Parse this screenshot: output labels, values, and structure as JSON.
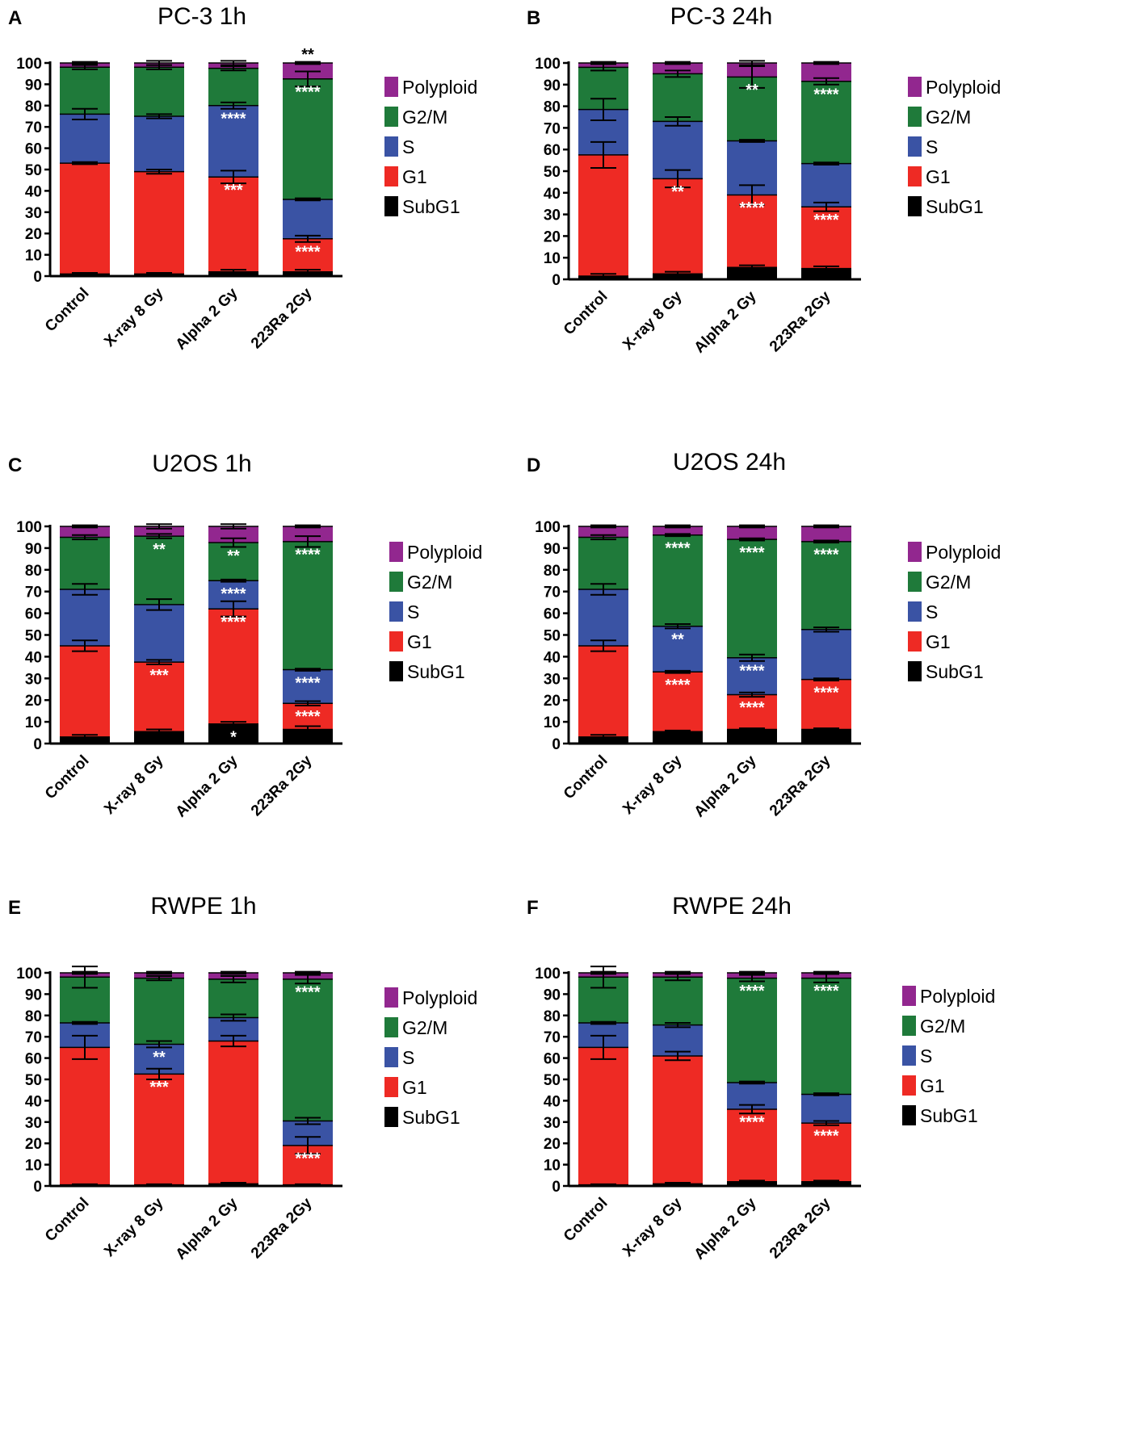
{
  "chart_data": [
    {
      "panel": "A",
      "title": "PC-3 1h",
      "type": "bar",
      "stacked": true,
      "ylim": [
        0,
        100
      ],
      "yticks": [
        0,
        10,
        20,
        30,
        40,
        50,
        60,
        70,
        80,
        90,
        100
      ],
      "categories": [
        "Control",
        "X-ray 8 Gy",
        "Alpha 2 Gy",
        "223Ra 2Gy"
      ],
      "series": [
        {
          "name": "SubG1",
          "color": "#000000",
          "values": [
            1,
            1,
            2,
            2
          ],
          "errors": [
            0.5,
            0.5,
            1,
            1
          ]
        },
        {
          "name": "G1",
          "color": "#ee2a24",
          "values": [
            52,
            48,
            44.5,
            15.5
          ],
          "errors": [
            0.5,
            1,
            3,
            1.5
          ]
        },
        {
          "name": "S",
          "color": "#3a53a4",
          "values": [
            23,
            26,
            33.5,
            18.5
          ],
          "errors": [
            2.5,
            1,
            1.5,
            0.5
          ]
        },
        {
          "name": "G2/M",
          "color": "#1f7a3a",
          "values": [
            22,
            23,
            17.5,
            56.5
          ],
          "errors": [
            1,
            1,
            1,
            3.5
          ]
        },
        {
          "name": "Polyploid",
          "color": "#92278f",
          "values": [
            2,
            2,
            2.5,
            7.5
          ],
          "errors": [
            0.5,
            1,
            1,
            0.5
          ]
        }
      ],
      "significance": [
        {
          "category": "Alpha 2 Gy",
          "series": "S",
          "label": "****",
          "color": "#ffffff"
        },
        {
          "category": "Alpha 2 Gy",
          "series": "G1",
          "label": "***",
          "color": "#ffffff"
        },
        {
          "category": "223Ra 2Gy",
          "series": "G2/M",
          "label": "****",
          "color": "#ffffff"
        },
        {
          "category": "223Ra 2Gy",
          "series": "G1",
          "label": "****",
          "color": "#ffffff"
        },
        {
          "category": "223Ra 2Gy",
          "series": "Polyploid",
          "label": "**",
          "color": "#000000",
          "above": true
        }
      ],
      "legend": [
        "Polyploid",
        "G2/M",
        "S",
        "G1",
        "SubG1"
      ]
    },
    {
      "panel": "B",
      "title": "PC-3 24h",
      "type": "bar",
      "stacked": true,
      "ylim": [
        0,
        100
      ],
      "yticks": [
        0,
        10,
        20,
        30,
        40,
        50,
        60,
        70,
        80,
        90,
        100
      ],
      "categories": [
        "Control",
        "X-ray 8 Gy",
        "Alpha 2 Gy",
        "223Ra 2Gy"
      ],
      "series": [
        {
          "name": "SubG1",
          "color": "#000000",
          "values": [
            1.5,
            2.5,
            5.5,
            5
          ],
          "errors": [
            1,
            1,
            1,
            1
          ]
        },
        {
          "name": "G1",
          "color": "#ee2a24",
          "values": [
            56,
            44,
            33.5,
            28.5
          ],
          "errors": [
            6,
            4,
            4.5,
            2
          ]
        },
        {
          "name": "S",
          "color": "#3a53a4",
          "values": [
            21,
            26.5,
            25,
            20
          ],
          "errors": [
            5,
            2,
            0.5,
            0.5
          ]
        },
        {
          "name": "G2/M",
          "color": "#1f7a3a",
          "values": [
            19.5,
            22,
            29.5,
            38
          ],
          "errors": [
            1.5,
            1.5,
            5,
            1.5
          ]
        },
        {
          "name": "Polyploid",
          "color": "#92278f",
          "values": [
            2,
            5,
            6.5,
            8.5
          ],
          "errors": [
            0.5,
            0.5,
            1,
            0.5
          ]
        }
      ],
      "significance": [
        {
          "category": "X-ray 8 Gy",
          "series": "G1",
          "label": "**",
          "color": "#ffffff"
        },
        {
          "category": "Alpha 2 Gy",
          "series": "G2/M",
          "label": "**",
          "color": "#ffffff"
        },
        {
          "category": "Alpha 2 Gy",
          "series": "G1",
          "label": "****",
          "color": "#ffffff"
        },
        {
          "category": "223Ra 2Gy",
          "series": "G2/M",
          "label": "****",
          "color": "#ffffff"
        },
        {
          "category": "223Ra 2Gy",
          "series": "G1",
          "label": "****",
          "color": "#ffffff"
        }
      ],
      "legend": [
        "Polyploid",
        "G2/M",
        "S",
        "G1",
        "SubG1"
      ]
    },
    {
      "panel": "C",
      "title": "U2OS 1h",
      "type": "bar",
      "stacked": true,
      "ylim": [
        0,
        100
      ],
      "yticks": [
        0,
        10,
        20,
        30,
        40,
        50,
        60,
        70,
        80,
        90,
        100
      ],
      "categories": [
        "Control",
        "X-ray 8 Gy",
        "Alpha 2 Gy",
        "223Ra 2Gy"
      ],
      "series": [
        {
          "name": "SubG1",
          "color": "#000000",
          "values": [
            3,
            5.5,
            9,
            6.5
          ],
          "errors": [
            1,
            1,
            1,
            1.5
          ]
        },
        {
          "name": "G1",
          "color": "#ee2a24",
          "values": [
            42,
            32,
            53,
            12
          ],
          "errors": [
            2.5,
            1,
            3.5,
            1
          ]
        },
        {
          "name": "S",
          "color": "#3a53a4",
          "values": [
            26,
            26.5,
            13,
            15.5
          ],
          "errors": [
            2.5,
            2.5,
            0.5,
            0.5
          ]
        },
        {
          "name": "G2/M",
          "color": "#1f7a3a",
          "values": [
            24,
            31.5,
            17.5,
            59
          ],
          "errors": [
            1,
            1,
            2,
            2.5
          ]
        },
        {
          "name": "Polyploid",
          "color": "#92278f",
          "values": [
            5,
            4.5,
            7.5,
            7
          ],
          "errors": [
            0.5,
            1,
            1,
            0.5
          ]
        }
      ],
      "significance": [
        {
          "category": "X-ray 8 Gy",
          "series": "G2/M",
          "label": "**",
          "color": "#ffffff"
        },
        {
          "category": "X-ray 8 Gy",
          "series": "G1",
          "label": "***",
          "color": "#ffffff"
        },
        {
          "category": "Alpha 2 Gy",
          "series": "G2/M",
          "label": "**",
          "color": "#ffffff"
        },
        {
          "category": "Alpha 2 Gy",
          "series": "S",
          "label": "****",
          "color": "#ffffff"
        },
        {
          "category": "Alpha 2 Gy",
          "series": "G1",
          "label": "****",
          "color": "#ffffff"
        },
        {
          "category": "Alpha 2 Gy",
          "series": "SubG1",
          "label": "*",
          "color": "#ffffff"
        },
        {
          "category": "223Ra 2Gy",
          "series": "G2/M",
          "label": "****",
          "color": "#ffffff"
        },
        {
          "category": "223Ra 2Gy",
          "series": "S",
          "label": "****",
          "color": "#ffffff"
        },
        {
          "category": "223Ra 2Gy",
          "series": "G1",
          "label": "****",
          "color": "#ffffff"
        }
      ],
      "legend": [
        "Polyploid",
        "G2/M",
        "S",
        "G1",
        "SubG1"
      ]
    },
    {
      "panel": "D",
      "title": "U2OS 24h",
      "type": "bar",
      "stacked": true,
      "ylim": [
        0,
        100
      ],
      "yticks": [
        0,
        10,
        20,
        30,
        40,
        50,
        60,
        70,
        80,
        90,
        100
      ],
      "categories": [
        "Control",
        "X-ray 8 Gy",
        "Alpha 2 Gy",
        "223Ra 2Gy"
      ],
      "series": [
        {
          "name": "SubG1",
          "color": "#000000",
          "values": [
            3,
            5.5,
            6.5,
            6.5
          ],
          "errors": [
            1,
            0.5,
            0.5,
            0.5
          ]
        },
        {
          "name": "G1",
          "color": "#ee2a24",
          "values": [
            42,
            27.5,
            16,
            23
          ],
          "errors": [
            2.5,
            0.5,
            1,
            0.5
          ]
        },
        {
          "name": "S",
          "color": "#3a53a4",
          "values": [
            26,
            21,
            17,
            23
          ],
          "errors": [
            2.5,
            1,
            1.5,
            1
          ]
        },
        {
          "name": "G2/M",
          "color": "#1f7a3a",
          "values": [
            24,
            42,
            54.5,
            40.5
          ],
          "errors": [
            1,
            0.5,
            0.5,
            0.5
          ]
        },
        {
          "name": "Polyploid",
          "color": "#92278f",
          "values": [
            5,
            4,
            6,
            7
          ],
          "errors": [
            0.5,
            0.5,
            0.5,
            0.5
          ]
        }
      ],
      "significance": [
        {
          "category": "X-ray 8 Gy",
          "series": "G2/M",
          "label": "****",
          "color": "#ffffff"
        },
        {
          "category": "X-ray 8 Gy",
          "series": "S",
          "label": "**",
          "color": "#ffffff"
        },
        {
          "category": "X-ray 8 Gy",
          "series": "G1",
          "label": "****",
          "color": "#ffffff"
        },
        {
          "category": "Alpha 2 Gy",
          "series": "G2/M",
          "label": "****",
          "color": "#ffffff"
        },
        {
          "category": "Alpha 2 Gy",
          "series": "S",
          "label": "****",
          "color": "#ffffff"
        },
        {
          "category": "Alpha 2 Gy",
          "series": "G1",
          "label": "****",
          "color": "#ffffff"
        },
        {
          "category": "223Ra 2Gy",
          "series": "G2/M",
          "label": "****",
          "color": "#ffffff"
        },
        {
          "category": "223Ra 2Gy",
          "series": "G1",
          "label": "****",
          "color": "#ffffff"
        }
      ],
      "legend": [
        "Polyploid",
        "G2/M",
        "S",
        "G1",
        "SubG1"
      ]
    },
    {
      "panel": "E",
      "title": "RWPE 1h",
      "type": "bar",
      "stacked": true,
      "ylim": [
        0,
        100
      ],
      "yticks": [
        0,
        10,
        20,
        30,
        40,
        50,
        60,
        70,
        80,
        90,
        100
      ],
      "categories": [
        "Control",
        "X-ray 8 Gy",
        "Alpha 2 Gy",
        "223Ra 2Gy"
      ],
      "series": [
        {
          "name": "SubG1",
          "color": "#000000",
          "values": [
            0.5,
            0.5,
            1,
            0.5
          ],
          "errors": [
            0.3,
            0.3,
            0.5,
            0.3
          ]
        },
        {
          "name": "G1",
          "color": "#ee2a24",
          "values": [
            64.5,
            52,
            67,
            18.5
          ],
          "errors": [
            5.5,
            2.5,
            2.5,
            4
          ]
        },
        {
          "name": "S",
          "color": "#3a53a4",
          "values": [
            11.5,
            14,
            11,
            11.5
          ],
          "errors": [
            0.5,
            1.5,
            1.5,
            1.5
          ]
        },
        {
          "name": "G2/M",
          "color": "#1f7a3a",
          "values": [
            21.5,
            31,
            18,
            66.5
          ],
          "errors": [
            5,
            1,
            1.5,
            2
          ]
        },
        {
          "name": "Polyploid",
          "color": "#92278f",
          "values": [
            2,
            2.5,
            3,
            3
          ],
          "errors": [
            0.5,
            0.5,
            0.5,
            0.5
          ]
        }
      ],
      "significance": [
        {
          "category": "X-ray 8 Gy",
          "series": "S",
          "label": "**",
          "color": "#ffffff"
        },
        {
          "category": "X-ray 8 Gy",
          "series": "G1",
          "label": "***",
          "color": "#ffffff"
        },
        {
          "category": "223Ra 2Gy",
          "series": "G2/M",
          "label": "****",
          "color": "#ffffff"
        },
        {
          "category": "223Ra 2Gy",
          "series": "G1",
          "label": "****",
          "color": "#ffffff"
        }
      ],
      "legend": [
        "Polyploid",
        "G2/M",
        "S",
        "G1",
        "SubG1"
      ]
    },
    {
      "panel": "F",
      "title": "RWPE 24h",
      "type": "bar",
      "stacked": true,
      "ylim": [
        0,
        100
      ],
      "yticks": [
        0,
        10,
        20,
        30,
        40,
        50,
        60,
        70,
        80,
        90,
        100
      ],
      "categories": [
        "Control",
        "X-ray 8 Gy",
        "Alpha 2 Gy",
        "223Ra 2Gy"
      ],
      "series": [
        {
          "name": "SubG1",
          "color": "#000000",
          "values": [
            0.5,
            1,
            2,
            2
          ],
          "errors": [
            0.3,
            0.5,
            0.5,
            0.5
          ]
        },
        {
          "name": "G1",
          "color": "#ee2a24",
          "values": [
            64.5,
            60,
            34,
            27.5
          ],
          "errors": [
            5.5,
            2,
            2,
            1
          ]
        },
        {
          "name": "S",
          "color": "#3a53a4",
          "values": [
            11.5,
            14.5,
            12.5,
            13.5
          ],
          "errors": [
            0.5,
            1,
            0.5,
            0.5
          ]
        },
        {
          "name": "G2/M",
          "color": "#1f7a3a",
          "values": [
            21.5,
            22.5,
            49,
            54.5
          ],
          "errors": [
            5,
            1.5,
            1.5,
            2
          ]
        },
        {
          "name": "Polyploid",
          "color": "#92278f",
          "values": [
            2,
            2,
            2.5,
            2.5
          ],
          "errors": [
            0.5,
            0.5,
            0.5,
            0.5
          ]
        }
      ],
      "significance": [
        {
          "category": "Alpha 2 Gy",
          "series": "G2/M",
          "label": "****",
          "color": "#ffffff"
        },
        {
          "category": "Alpha 2 Gy",
          "series": "G1",
          "label": "****",
          "color": "#ffffff"
        },
        {
          "category": "223Ra 2Gy",
          "series": "G2/M",
          "label": "****",
          "color": "#ffffff"
        },
        {
          "category": "223Ra 2Gy",
          "series": "G1",
          "label": "****",
          "color": "#ffffff"
        }
      ],
      "legend": [
        "Polyploid",
        "G2/M",
        "S",
        "G1",
        "SubG1"
      ]
    }
  ]
}
